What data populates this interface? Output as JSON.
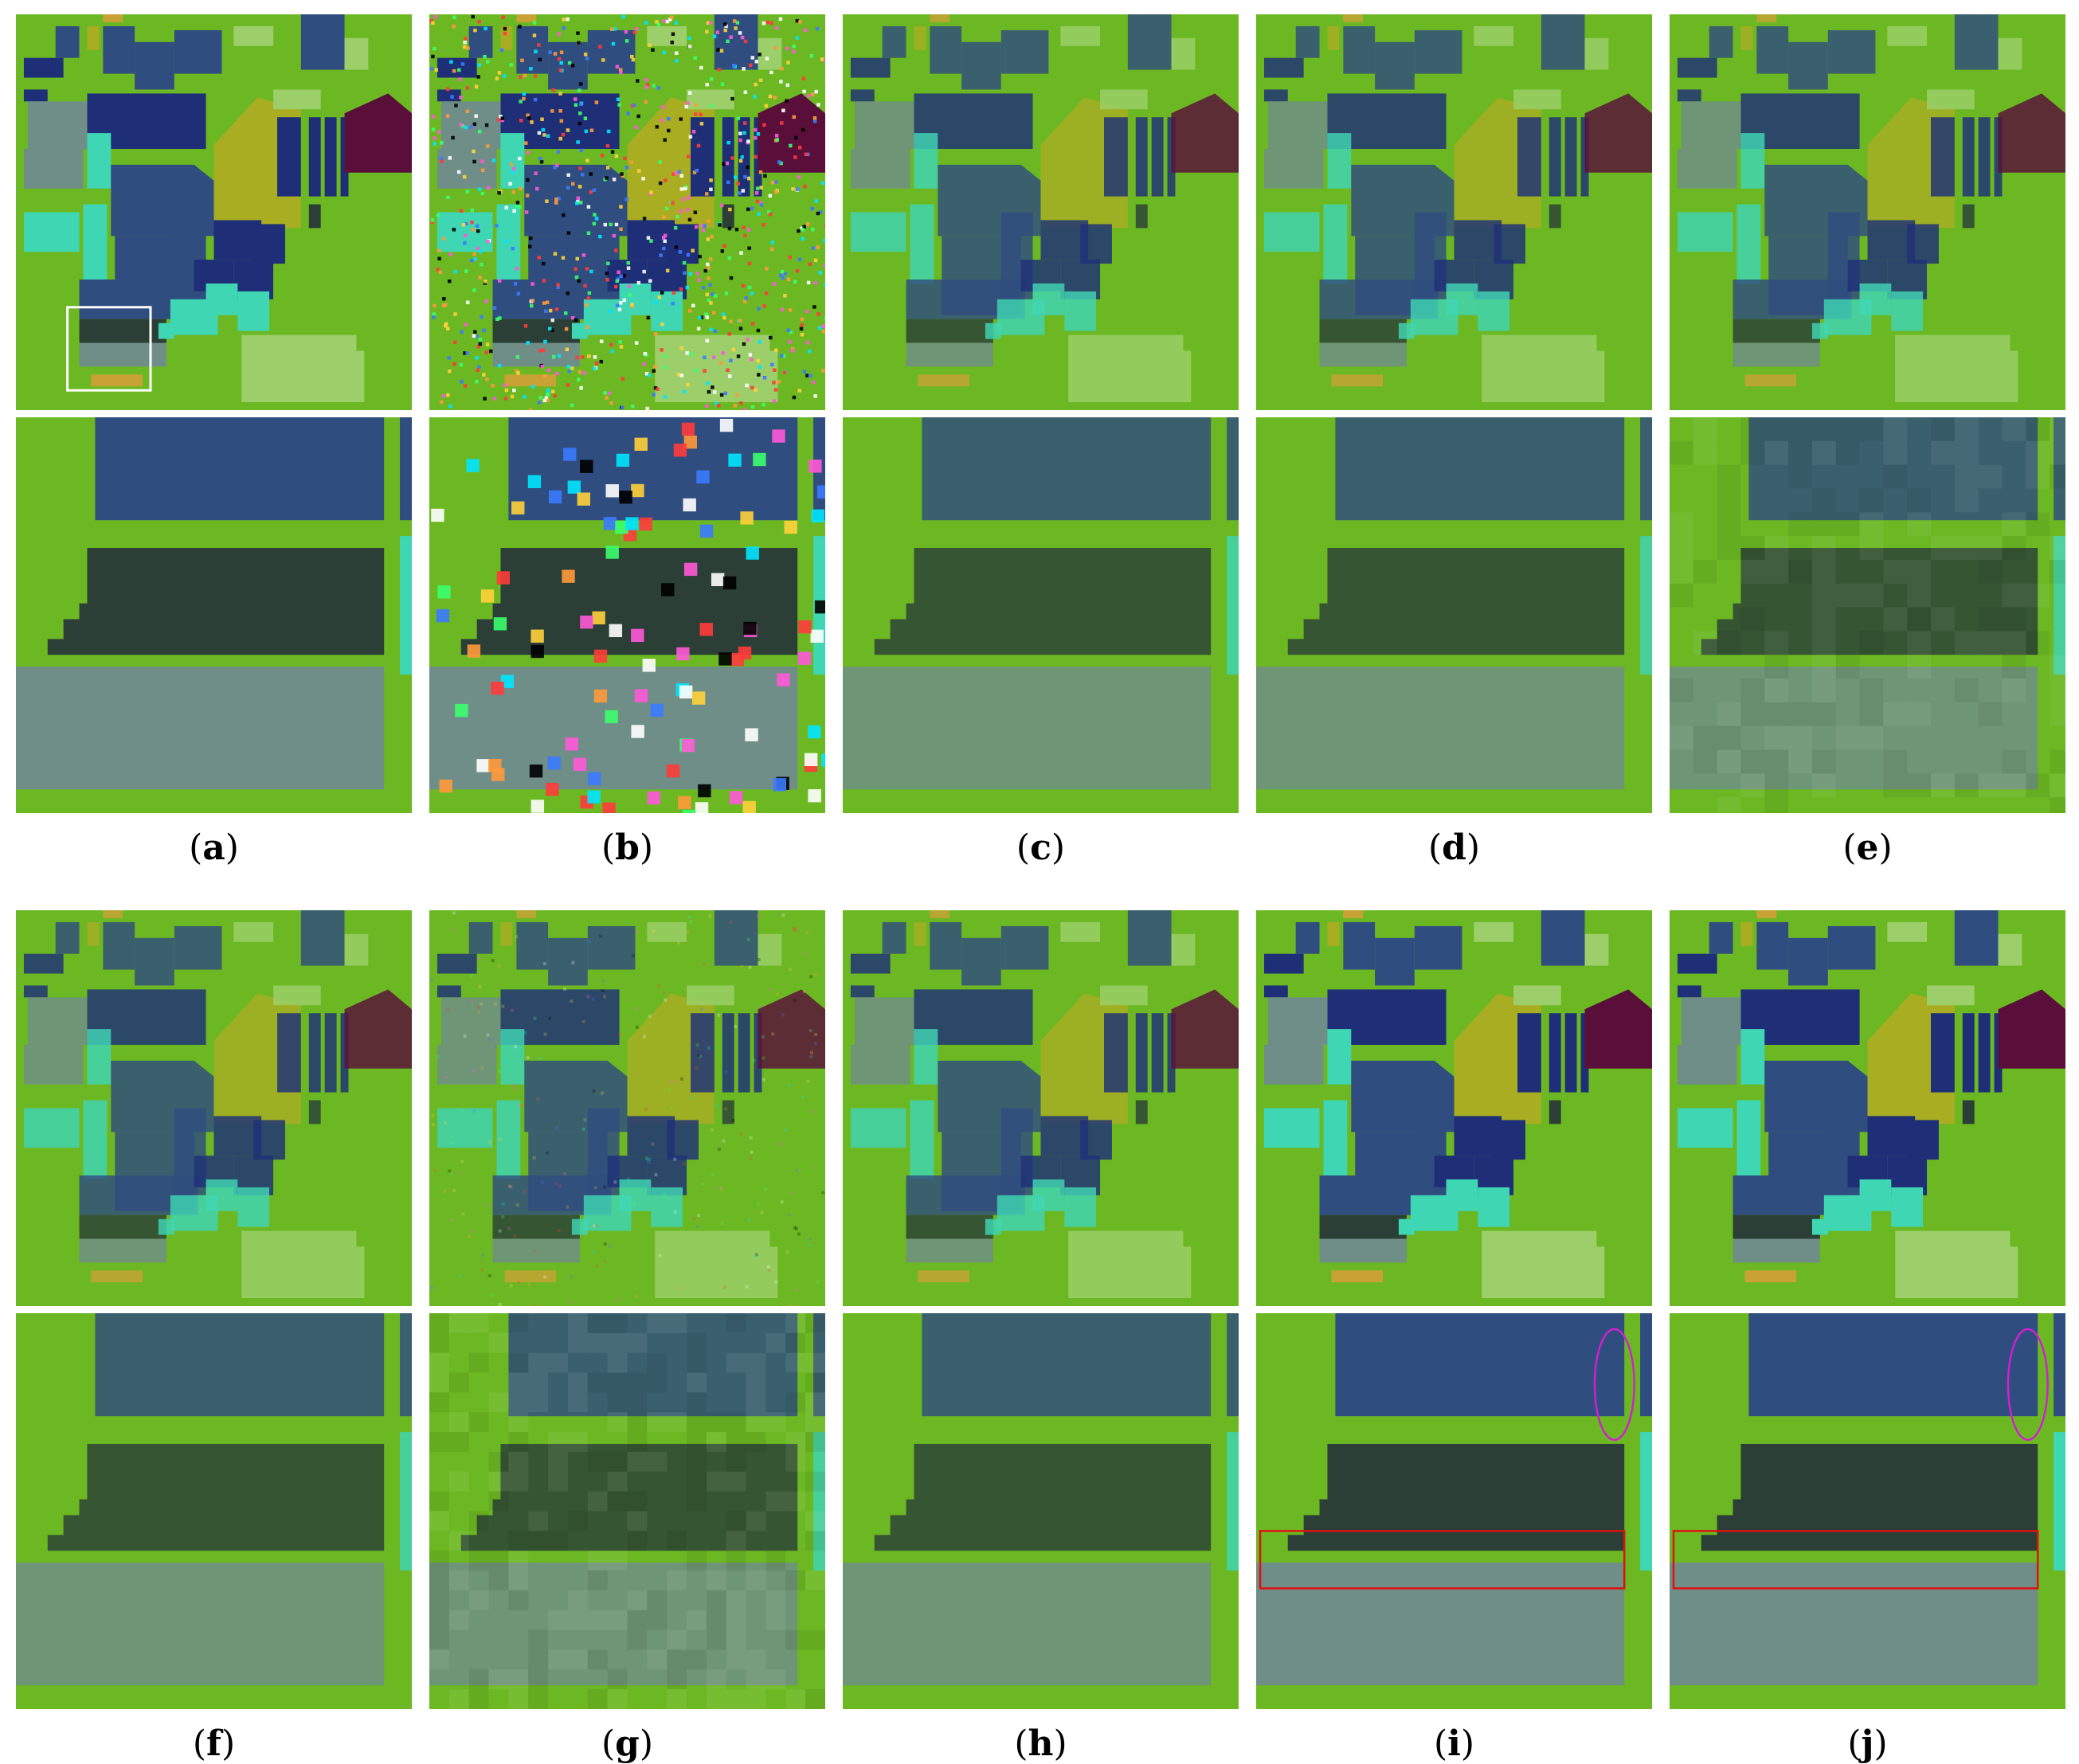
{
  "panels": [
    {
      "id": "a",
      "label": "a",
      "style": "clean"
    },
    {
      "id": "b",
      "label": "b",
      "style": "noisy"
    },
    {
      "id": "c",
      "label": "c",
      "style": "smooth"
    },
    {
      "id": "d",
      "label": "d",
      "style": "smooth"
    },
    {
      "id": "e",
      "label": "e",
      "style": "blocky"
    },
    {
      "id": "f",
      "label": "f",
      "style": "smooth"
    },
    {
      "id": "g",
      "label": "g",
      "style": "noisy-light"
    },
    {
      "id": "h",
      "label": "h",
      "style": "smooth"
    },
    {
      "id": "i",
      "label": "i",
      "style": "clean-marked"
    },
    {
      "id": "j",
      "label": "j",
      "style": "clean-marked"
    }
  ],
  "colors": {
    "background": "#6cb823",
    "navy": "#1e2f78",
    "slate": "#2f4d7e",
    "cyan": "#3fd6b4",
    "olive": "#a8ad22",
    "maroon": "#5a0f3a",
    "lightgreen": "#9ccf6a",
    "darkgreen": "#2b3f36",
    "gray": "#6f8e88",
    "gold": "#c8a232",
    "zoom_box": "#ffffff",
    "rect_marker": "#e01010",
    "ellipse_marker": "#d020d0"
  }
}
